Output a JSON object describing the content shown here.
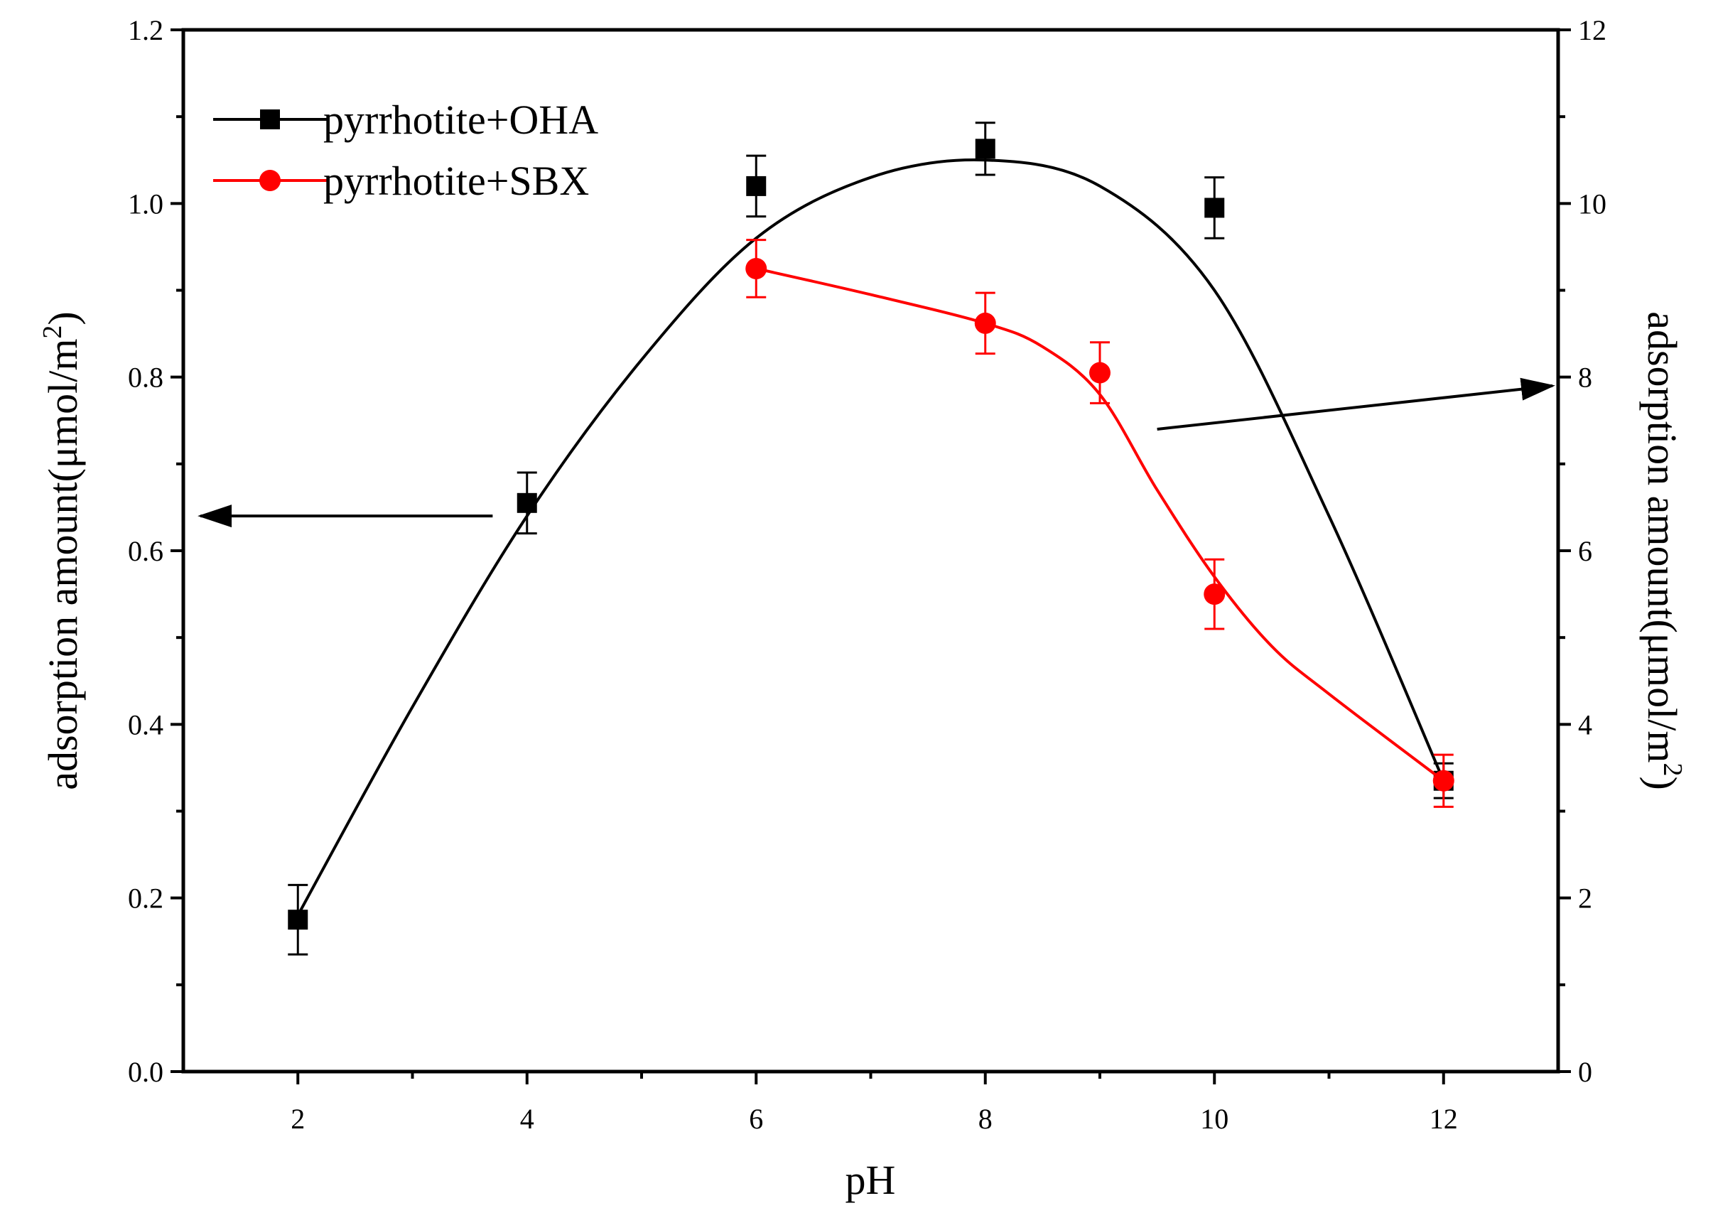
{
  "chart_data": {
    "type": "line",
    "xlabel": "pH",
    "ylabel_left": "adsorption amount(μmol/m",
    "ylabel_left_sup": "2",
    "ylabel_left_close": ")",
    "ylabel_right": "adsorption amount(μmol/m",
    "ylabel_right_sup": "2",
    "ylabel_right_close": ")",
    "xlim": [
      1,
      13
    ],
    "ylim_left": [
      0,
      1.2
    ],
    "ylim_right": [
      0,
      12
    ],
    "x_ticks": [
      "2",
      "4",
      "6",
      "8",
      "10",
      "12"
    ],
    "y_left_ticks": [
      "0.0",
      "0.2",
      "0.4",
      "0.6",
      "0.8",
      "1.0",
      "1.2"
    ],
    "y_right_ticks": [
      "0",
      "2",
      "4",
      "6",
      "8",
      "10",
      "12"
    ],
    "legend": {
      "position": "top-left"
    },
    "series": [
      {
        "name": "pyrrhotite+OHA",
        "color": "#000000",
        "marker": "square",
        "axis": "left",
        "x": [
          2,
          4,
          6,
          8,
          10,
          12
        ],
        "y": [
          0.175,
          0.655,
          1.02,
          1.063,
          0.995,
          0.335
        ],
        "err": [
          0.04,
          0.035,
          0.035,
          0.03,
          0.035,
          0.02
        ],
        "fit_curve": [
          [
            2,
            0.18
          ],
          [
            3,
            0.42
          ],
          [
            4,
            0.64
          ],
          [
            5,
            0.82
          ],
          [
            6,
            0.96
          ],
          [
            7,
            1.03
          ],
          [
            8,
            1.05
          ],
          [
            9,
            1.02
          ],
          [
            10,
            0.9
          ],
          [
            11,
            0.64
          ],
          [
            12,
            0.335
          ]
        ]
      },
      {
        "name": "pyrrhotite+SBX",
        "color": "#ff0000",
        "marker": "circle",
        "axis": "left",
        "x": [
          6,
          8,
          9,
          10,
          12
        ],
        "y": [
          0.925,
          0.862,
          0.805,
          0.55,
          0.335
        ],
        "err": [
          0.033,
          0.035,
          0.035,
          0.04,
          0.03
        ],
        "fit_curve": [
          [
            6,
            0.925
          ],
          [
            7,
            0.895
          ],
          [
            8,
            0.862
          ],
          [
            8.5,
            0.835
          ],
          [
            9,
            0.78
          ],
          [
            9.5,
            0.67
          ],
          [
            10,
            0.57
          ],
          [
            10.5,
            0.49
          ],
          [
            11,
            0.435
          ],
          [
            12,
            0.335
          ]
        ]
      }
    ],
    "annotations": [
      {
        "type": "arrow",
        "direction": "left",
        "points_to": "left-axis",
        "at_x": 3.7,
        "to_x": 1.1,
        "y": 0.64
      },
      {
        "type": "arrow",
        "direction": "right",
        "points_to": "right-axis",
        "at_x": 9.5,
        "at_y": 0.74,
        "to_x": 13,
        "to_y": 0.79
      }
    ]
  }
}
